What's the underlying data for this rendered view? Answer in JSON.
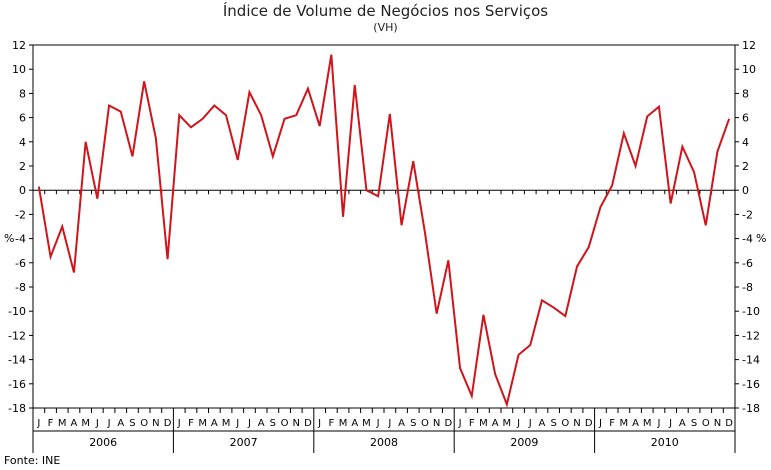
{
  "chart_data": {
    "type": "line",
    "title": "Índice de Volume de Negócios nos Serviços",
    "subtitle": "(VH)",
    "ylabel_left": "%",
    "ylabel_right": "%",
    "source": "Fonte: INE",
    "ylim": [
      -18,
      12
    ],
    "yticks": [
      12,
      10,
      8,
      6,
      4,
      2,
      0,
      -2,
      -4,
      -6,
      -8,
      -10,
      -12,
      -14,
      -16,
      -18
    ],
    "grid": false,
    "legend": "none",
    "month_labels": [
      "J",
      "F",
      "M",
      "A",
      "M",
      "J",
      "J",
      "A",
      "S",
      "O",
      "N",
      "D"
    ],
    "years": [
      "2006",
      "2007",
      "2008",
      "2009",
      "2010"
    ],
    "series": [
      {
        "color": "#d0141b",
        "values": [
          0.3,
          -5.5,
          -3.0,
          -6.8,
          4.0,
          -0.7,
          7.0,
          6.5,
          2.8,
          9.0,
          4.3,
          -5.7,
          6.2,
          5.2,
          5.9,
          7.0,
          6.2,
          2.5,
          8.1,
          6.2,
          2.8,
          5.9,
          6.2,
          8.4,
          5.3,
          11.2,
          -2.2,
          8.7,
          0.0,
          -0.5,
          6.3,
          -2.9,
          2.4,
          -3.5,
          -10.2,
          -5.8,
          -14.7,
          -17.0,
          -10.3,
          -15.2,
          -17.7,
          -13.6,
          -12.8,
          -9.1,
          -9.7,
          -10.4,
          -6.3,
          -4.7,
          -1.4,
          0.4,
          4.7,
          2.0,
          6.1,
          6.9,
          -1.1,
          3.6,
          1.5,
          -2.9,
          3.2,
          5.9
        ]
      }
    ]
  }
}
